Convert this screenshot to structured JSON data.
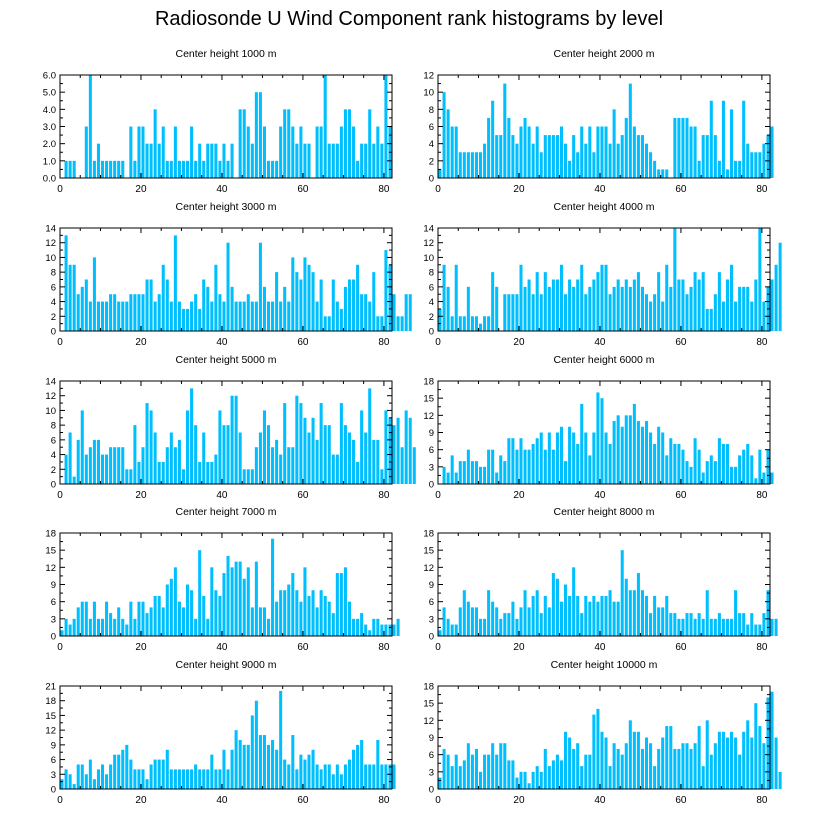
{
  "title": "Radiosonde U Wind Component rank histograms by level",
  "colors": {
    "bar": "#00bfff",
    "axis": "#000000"
  },
  "chart_data": [
    {
      "type": "bar",
      "title": "Center height 1000 m",
      "xlim": [
        0,
        82
      ],
      "xticks": [
        0,
        20,
        40,
        60,
        80
      ],
      "ylim": [
        0,
        6
      ],
      "yticks": [
        0.0,
        1.0,
        2.0,
        3.0,
        4.0,
        5.0,
        6.0
      ],
      "ytick_labels": [
        "0.0",
        "1.0",
        "2.0",
        "3.0",
        "4.0",
        "5.0",
        "6.0"
      ],
      "values": [
        0,
        1,
        1,
        1,
        0,
        0,
        3,
        6,
        1,
        2,
        1,
        1,
        1,
        1,
        1,
        1,
        0,
        3,
        1,
        3,
        3,
        2,
        2,
        4,
        2,
        3,
        1,
        1,
        3,
        1,
        1,
        1,
        3,
        1,
        2,
        1,
        2,
        2,
        2,
        1,
        2,
        1,
        2,
        0,
        4,
        4,
        3,
        2,
        5,
        5,
        3,
        1,
        1,
        1,
        3,
        4,
        4,
        3,
        2,
        3,
        2,
        2,
        0,
        3,
        3,
        6,
        2,
        2,
        2,
        3,
        4,
        4,
        3,
        1,
        2,
        2,
        4,
        2,
        3,
        2,
        6,
        3,
        0
      ]
    },
    {
      "type": "bar",
      "title": "Center height 2000 m",
      "xlim": [
        0,
        82
      ],
      "xticks": [
        0,
        20,
        40,
        60,
        80
      ],
      "ylim": [
        0,
        12
      ],
      "yticks": [
        0,
        2,
        4,
        6,
        8,
        10,
        12
      ],
      "ytick_labels": [
        "0",
        "2",
        "4",
        "6",
        "8",
        "10",
        "12"
      ],
      "values": [
        1,
        10,
        8,
        6,
        6,
        3,
        3,
        3,
        3,
        3,
        3,
        4,
        7,
        9,
        5,
        5,
        11,
        7,
        5,
        4,
        6,
        7,
        6,
        4,
        6,
        3,
        5,
        5,
        5,
        5,
        6,
        4,
        2,
        5,
        3,
        6,
        4,
        6,
        3,
        6,
        6,
        6,
        4,
        8,
        4,
        5,
        7,
        11,
        6,
        5,
        5,
        4,
        3,
        2,
        1,
        1,
        1,
        0,
        7,
        7,
        7,
        7,
        6,
        6,
        2,
        5,
        5,
        9,
        5,
        2,
        9,
        1,
        8,
        2,
        2,
        9,
        4,
        3,
        3,
        3,
        4,
        5,
        6
      ]
    },
    {
      "type": "bar",
      "title": "Center height 3000 m",
      "xlim": [
        0,
        82
      ],
      "xticks": [
        0,
        20,
        40,
        60,
        80
      ],
      "ylim": [
        0,
        14
      ],
      "yticks": [
        0,
        2,
        4,
        6,
        8,
        10,
        12,
        14
      ],
      "ytick_labels": [
        "0",
        "2",
        "4",
        "6",
        "8",
        "10",
        "12",
        "14"
      ],
      "values": [
        0,
        13,
        9,
        9,
        5,
        6,
        7,
        4,
        10,
        4,
        4,
        4,
        5,
        5,
        4,
        4,
        4,
        5,
        5,
        5,
        5,
        7,
        7,
        4,
        5,
        9,
        7,
        4,
        13,
        4,
        3,
        3,
        4,
        5,
        3,
        7,
        6,
        4,
        9,
        5,
        4,
        12,
        6,
        4,
        4,
        4,
        5,
        4,
        4,
        12,
        6,
        4,
        4,
        8,
        4,
        6,
        4,
        10,
        8,
        7,
        10,
        9,
        8,
        4,
        7,
        2,
        2,
        7,
        4,
        3,
        6,
        7,
        7,
        9,
        5,
        5,
        4,
        8,
        2,
        2,
        11,
        9,
        5,
        2,
        2,
        5,
        5
      ]
    },
    {
      "type": "bar",
      "title": "Center height 4000 m",
      "xlim": [
        0,
        82
      ],
      "xticks": [
        0,
        20,
        40,
        60,
        80
      ],
      "ylim": [
        0,
        14
      ],
      "yticks": [
        0,
        2,
        4,
        6,
        8,
        10,
        12,
        14
      ],
      "ytick_labels": [
        "0",
        "2",
        "4",
        "6",
        "8",
        "10",
        "12",
        "14"
      ],
      "values": [
        3,
        9,
        6,
        2,
        9,
        2,
        2,
        6,
        2,
        2,
        1,
        2,
        2,
        8,
        6,
        0,
        5,
        5,
        5,
        5,
        9,
        6,
        7,
        5,
        8,
        5,
        8,
        6,
        7,
        7,
        9,
        5,
        7,
        6,
        7,
        9,
        5,
        6,
        7,
        8,
        9,
        9,
        5,
        6,
        7,
        6,
        7,
        6,
        7,
        8,
        6,
        5,
        4,
        5,
        8,
        4,
        9,
        6,
        14,
        7,
        7,
        5,
        6,
        8,
        7,
        8,
        3,
        3,
        5,
        8,
        4,
        7,
        9,
        4,
        6,
        6,
        6,
        4,
        7,
        14,
        4,
        6,
        7,
        9,
        12
      ]
    },
    {
      "type": "bar",
      "title": "Center height 5000 m",
      "xlim": [
        0,
        82
      ],
      "xticks": [
        0,
        20,
        40,
        60,
        80
      ],
      "ylim": [
        0,
        14
      ],
      "yticks": [
        0,
        2,
        4,
        6,
        8,
        10,
        12,
        14
      ],
      "ytick_labels": [
        "0",
        "2",
        "4",
        "6",
        "8",
        "10",
        "12",
        "14"
      ],
      "values": [
        0,
        4,
        7,
        1,
        6,
        10,
        4,
        5,
        6,
        6,
        4,
        4,
        5,
        5,
        5,
        5,
        2,
        2,
        8,
        3,
        5,
        11,
        10,
        7,
        3,
        3,
        5,
        7,
        5,
        6,
        2,
        10,
        13,
        8,
        3,
        7,
        3,
        3,
        4,
        10,
        8,
        8,
        12,
        12,
        7,
        2,
        2,
        2,
        5,
        7,
        10,
        8,
        5,
        6,
        4,
        11,
        5,
        5,
        12,
        11,
        9,
        7,
        9,
        6,
        11,
        8,
        8,
        4,
        4,
        11,
        8,
        7,
        6,
        3,
        10,
        7,
        13,
        6,
        6,
        2,
        10,
        9,
        8,
        9,
        5,
        10,
        9,
        5
      ]
    },
    {
      "type": "bar",
      "title": "Center height 6000 m",
      "xlim": [
        0,
        82
      ],
      "xticks": [
        0,
        20,
        40,
        60,
        80
      ],
      "ylim": [
        0,
        18
      ],
      "yticks": [
        0,
        3,
        6,
        9,
        12,
        15,
        18
      ],
      "ytick_labels": [
        "0",
        "3",
        "6",
        "9",
        "12",
        "15",
        "18"
      ],
      "values": [
        0,
        3,
        2,
        5,
        2,
        4,
        4,
        6,
        4,
        4,
        3,
        3,
        6,
        6,
        2,
        5,
        4,
        8,
        8,
        6,
        8,
        6,
        6,
        7,
        8,
        9,
        6,
        9,
        6,
        9,
        10,
        4,
        10,
        9,
        7,
        14,
        9,
        5,
        9,
        16,
        15,
        9,
        7,
        11,
        12,
        10,
        12,
        12,
        14,
        11,
        10,
        11,
        9,
        7,
        10,
        9,
        5,
        8,
        7,
        7,
        6,
        4,
        3,
        8,
        6,
        2,
        4,
        5,
        4,
        8,
        7,
        7,
        3,
        3,
        5,
        6,
        7,
        5,
        1,
        6,
        2,
        6,
        2
      ]
    },
    {
      "type": "bar",
      "title": "Center height 7000 m",
      "xlim": [
        0,
        82
      ],
      "xticks": [
        0,
        20,
        40,
        60,
        80
      ],
      "ylim": [
        0,
        18
      ],
      "yticks": [
        0,
        3,
        6,
        9,
        12,
        15,
        18
      ],
      "ytick_labels": [
        "0",
        "3",
        "6",
        "9",
        "12",
        "15",
        "18"
      ],
      "values": [
        1,
        3,
        2,
        3,
        5,
        6,
        6,
        3,
        6,
        3,
        3,
        6,
        4,
        3,
        5,
        3,
        2,
        6,
        3,
        6,
        6,
        4,
        5,
        7,
        7,
        5,
        9,
        10,
        12,
        6,
        5,
        9,
        8,
        3,
        15,
        7,
        3,
        12,
        8,
        7,
        11,
        14,
        12,
        13,
        13,
        10,
        12,
        5,
        13,
        5,
        5,
        3,
        17,
        6,
        8,
        8,
        9,
        11,
        8,
        6,
        12,
        7,
        8,
        5,
        8,
        7,
        6,
        4,
        11,
        11,
        12,
        6,
        3,
        3,
        4,
        2,
        1,
        3,
        3,
        2,
        2,
        2,
        2,
        3
      ]
    },
    {
      "type": "bar",
      "title": "Center height 8000 m",
      "xlim": [
        0,
        82
      ],
      "xticks": [
        0,
        20,
        40,
        60,
        80
      ],
      "ylim": [
        0,
        18
      ],
      "yticks": [
        0,
        3,
        6,
        9,
        12,
        15,
        18
      ],
      "ytick_labels": [
        "0",
        "3",
        "6",
        "9",
        "12",
        "15",
        "18"
      ],
      "values": [
        1,
        5,
        3,
        2,
        2,
        5,
        8,
        6,
        5,
        5,
        3,
        3,
        8,
        6,
        5,
        3,
        4,
        4,
        6,
        3,
        5,
        8,
        5,
        7,
        8,
        4,
        7,
        5,
        11,
        10,
        6,
        9,
        7,
        12,
        7,
        4,
        7,
        6,
        7,
        6,
        7,
        7,
        8,
        6,
        6,
        15,
        10,
        8,
        8,
        11,
        8,
        7,
        4,
        7,
        5,
        5,
        7,
        4,
        4,
        3,
        3,
        4,
        4,
        3,
        4,
        3,
        8,
        3,
        3,
        4,
        3,
        3,
        3,
        8,
        4,
        4,
        2,
        4,
        2,
        2,
        4,
        8,
        3,
        3
      ]
    },
    {
      "type": "bar",
      "title": "Center height 9000 m",
      "xlim": [
        0,
        82
      ],
      "xticks": [
        0,
        20,
        40,
        60,
        80
      ],
      "ylim": [
        0,
        21
      ],
      "yticks": [
        0,
        3,
        6,
        9,
        12,
        15,
        18,
        21
      ],
      "ytick_labels": [
        "0",
        "3",
        "6",
        "9",
        "12",
        "15",
        "18",
        "21"
      ],
      "values": [
        2,
        4,
        3,
        1,
        5,
        5,
        3,
        6,
        2,
        4,
        5,
        3,
        5,
        7,
        7,
        8,
        9,
        6,
        4,
        4,
        4,
        2,
        5,
        6,
        6,
        6,
        8,
        4,
        4,
        4,
        4,
        4,
        4,
        5,
        4,
        4,
        4,
        7,
        4,
        4,
        8,
        4,
        8,
        12,
        10,
        9,
        9,
        15,
        18,
        11,
        11,
        9,
        10,
        8,
        20,
        6,
        5,
        11,
        4,
        7,
        6,
        7,
        8,
        5,
        4,
        5,
        5,
        3,
        5,
        3,
        5,
        6,
        8,
        9,
        10,
        5,
        5,
        5,
        10,
        5,
        5,
        5,
        5
      ]
    },
    {
      "type": "bar",
      "title": "Center height 10000 m",
      "xlim": [
        0,
        82
      ],
      "xticks": [
        0,
        20,
        40,
        60,
        80
      ],
      "ylim": [
        0,
        18
      ],
      "yticks": [
        0,
        3,
        6,
        9,
        12,
        15,
        18
      ],
      "ytick_labels": [
        "0",
        "3",
        "6",
        "9",
        "12",
        "15",
        "18"
      ],
      "values": [
        2,
        7,
        6,
        4,
        6,
        4,
        5,
        8,
        6,
        7,
        3,
        6,
        6,
        8,
        6,
        8,
        8,
        5,
        5,
        2,
        3,
        3,
        1,
        3,
        4,
        3,
        7,
        4,
        5,
        6,
        5,
        10,
        9,
        7,
        8,
        4,
        6,
        6,
        13,
        14,
        10,
        9,
        4,
        8,
        7,
        6,
        8,
        12,
        10,
        10,
        7,
        9,
        8,
        4,
        7,
        9,
        11,
        11,
        7,
        7,
        8,
        8,
        7,
        8,
        11,
        4,
        12,
        6,
        8,
        10,
        10,
        9,
        10,
        9,
        6,
        10,
        12,
        9,
        15,
        11,
        8,
        16,
        17,
        9,
        3
      ]
    }
  ]
}
